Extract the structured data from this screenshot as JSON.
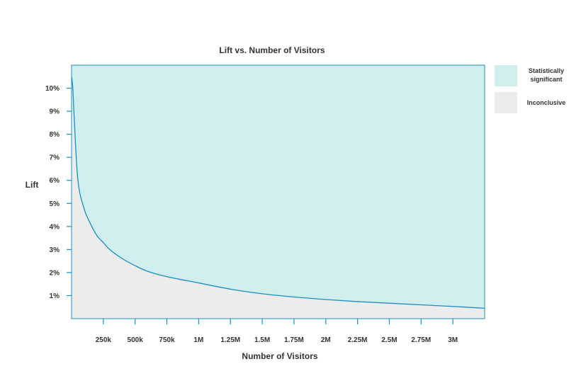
{
  "chart_data": {
    "type": "area",
    "title": "Lift vs. Number of Visitors",
    "xlabel": "Number of Visitors",
    "ylabel": "Lift",
    "xlim": [
      0,
      3250000
    ],
    "ylim": [
      0,
      0.11
    ],
    "x_ticks": [
      {
        "value": 250000,
        "label": "250k"
      },
      {
        "value": 500000,
        "label": "500k"
      },
      {
        "value": 750000,
        "label": "750k"
      },
      {
        "value": 1000000,
        "label": "1M"
      },
      {
        "value": 1250000,
        "label": "1.25M"
      },
      {
        "value": 1500000,
        "label": "1.5M"
      },
      {
        "value": 1750000,
        "label": "1.75M"
      },
      {
        "value": 2000000,
        "label": "2M"
      },
      {
        "value": 2250000,
        "label": "2.25M"
      },
      {
        "value": 2500000,
        "label": "2.5M"
      },
      {
        "value": 2750000,
        "label": "2.75M"
      },
      {
        "value": 3000000,
        "label": "3M"
      }
    ],
    "y_ticks": [
      {
        "value": 0.01,
        "label": "1%"
      },
      {
        "value": 0.02,
        "label": "2%"
      },
      {
        "value": 0.03,
        "label": "3%"
      },
      {
        "value": 0.04,
        "label": "4%"
      },
      {
        "value": 0.05,
        "label": "5%"
      },
      {
        "value": 0.06,
        "label": "6%"
      },
      {
        "value": 0.07,
        "label": "7%"
      },
      {
        "value": 0.08,
        "label": "8%"
      },
      {
        "value": 0.09,
        "label": "9%"
      },
      {
        "value": 0.1,
        "label": "10%"
      }
    ],
    "series": [
      {
        "x": [
          0,
          10000,
          20000,
          50000,
          100000,
          150000,
          200000,
          250000,
          300000,
          400000,
          500000,
          600000,
          750000,
          1000000,
          1250000,
          1500000,
          1750000,
          2000000,
          2250000,
          2500000,
          2750000,
          3000000,
          3250000
        ],
        "y": [
          0.105,
          0.1,
          0.088,
          0.06,
          0.0475,
          0.041,
          0.036,
          0.033,
          0.03,
          0.026,
          0.023,
          0.0205,
          0.0182,
          0.0155,
          0.0128,
          0.0108,
          0.0094,
          0.0083,
          0.0074,
          0.0067,
          0.006,
          0.0053,
          0.0045
        ]
      }
    ],
    "regions": [
      {
        "label": "Statistically significant",
        "position": "above-curve",
        "color": "#cfeeed"
      },
      {
        "label": "Inconclusive",
        "position": "below-curve",
        "color": "#ececec"
      }
    ],
    "line_color": "#1a8fbf",
    "axis_color": "#1a8fbf",
    "grid": false,
    "legend": "right"
  }
}
